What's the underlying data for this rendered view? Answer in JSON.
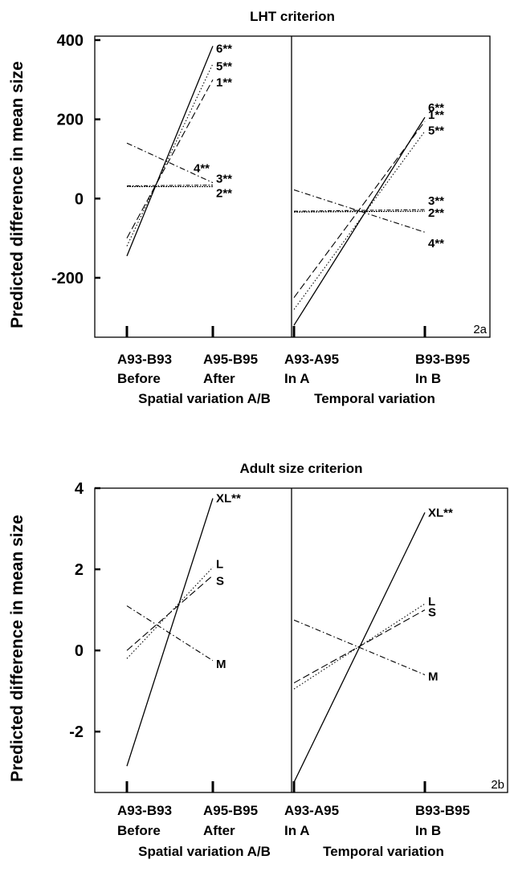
{
  "chart_data": [
    {
      "type": "line",
      "id": "2a",
      "title": "LHT criterion",
      "ylabel": "Predicted difference in mean size",
      "ylim": [
        -350,
        410
      ],
      "yticks": [
        400,
        200,
        0,
        -200
      ],
      "ytick_labels": [
        "400",
        "200",
        "0",
        "-200"
      ],
      "panels": [
        {
          "xlabel": "Spatial variation A/B",
          "categories": [
            "A93-B93\nBefore",
            "A95-B95\nAfter"
          ],
          "series": [
            {
              "name": "6**",
              "style": "solid",
              "values": [
                -145,
                385
              ]
            },
            {
              "name": "5**",
              "style": "dotted",
              "values": [
                -120,
                340
              ]
            },
            {
              "name": "1**",
              "style": "longdash",
              "values": [
                -100,
                300
              ]
            },
            {
              "name": "4**",
              "style": "dashdot",
              "values": [
                140,
                40
              ]
            },
            {
              "name": "3**",
              "style": "dashdot2",
              "values": [
                32,
                34
              ]
            },
            {
              "name": "2**",
              "style": "dense",
              "values": [
                30,
                30
              ]
            }
          ]
        },
        {
          "xlabel": "Temporal variation",
          "categories": [
            "A93-A95\nIn A",
            "B93-B95\nIn B"
          ],
          "series": [
            {
              "name": "6**",
              "style": "solid",
              "values": [
                -320,
                205
              ]
            },
            {
              "name": "1**",
              "style": "longdash",
              "values": [
                -250,
                195
              ]
            },
            {
              "name": "5**",
              "style": "dotted",
              "values": [
                -280,
                170
              ]
            },
            {
              "name": "3**",
              "style": "dashdot2",
              "values": [
                -32,
                -28
              ]
            },
            {
              "name": "2**",
              "style": "dense",
              "values": [
                -34,
                -32
              ]
            },
            {
              "name": "4**",
              "style": "dashdot",
              "values": [
                22,
                -85
              ]
            }
          ]
        }
      ]
    },
    {
      "type": "line",
      "id": "2b",
      "title": "Adult size criterion",
      "ylabel": "Predicted difference in mean size",
      "ylim": [
        -3.5,
        4.0
      ],
      "yticks": [
        4,
        2,
        0,
        -2
      ],
      "ytick_labels": [
        "4",
        "2",
        "0",
        "-2"
      ],
      "panels": [
        {
          "xlabel": "Spatial variation A/B",
          "categories": [
            "A93-B93\nBefore",
            "A95-B95\nAfter"
          ],
          "series": [
            {
              "name": "XL**",
              "style": "solid",
              "values": [
                -2.85,
                3.75
              ]
            },
            {
              "name": "L",
              "style": "dotted",
              "values": [
                -0.2,
                2.05
              ]
            },
            {
              "name": "S",
              "style": "longdash",
              "values": [
                0.0,
                1.85
              ]
            },
            {
              "name": "M",
              "style": "dashdot",
              "values": [
                1.1,
                -0.25
              ]
            }
          ]
        },
        {
          "xlabel": "Temporal variation",
          "categories": [
            "A93-A95\nIn A",
            "B93-B95\nIn B"
          ],
          "series": [
            {
              "name": "XL**",
              "style": "solid",
              "values": [
                -3.25,
                3.4
              ]
            },
            {
              "name": "L",
              "style": "dotted",
              "values": [
                -0.95,
                1.15
              ]
            },
            {
              "name": "S",
              "style": "longdash",
              "values": [
                -0.8,
                1.0
              ]
            },
            {
              "name": "M",
              "style": "dashdot",
              "values": [
                0.75,
                -0.6
              ]
            }
          ]
        }
      ]
    }
  ]
}
